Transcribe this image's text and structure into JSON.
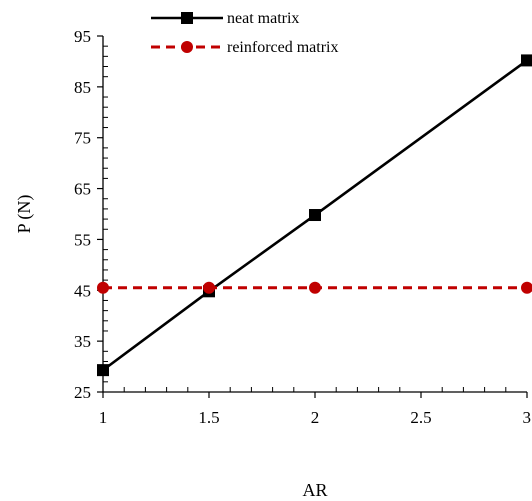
{
  "chart_data": {
    "type": "line",
    "xlabel": "AR",
    "ylabel": "P (N)",
    "xlim": [
      1,
      3
    ],
    "ylim": [
      25,
      95
    ],
    "xticks": [
      1,
      1.5,
      2,
      2.5,
      3
    ],
    "xtick_labels": [
      "1",
      "1.5",
      "2",
      "2.5",
      "3"
    ],
    "yticks": [
      25,
      35,
      45,
      55,
      65,
      75,
      85,
      95
    ],
    "ytick_labels": [
      "25",
      "35",
      "45",
      "55",
      "65",
      "75",
      "85",
      "95"
    ],
    "grid": false,
    "legend_position": "top-left",
    "series": [
      {
        "name": "neat matrix",
        "color": "#000000",
        "line_style": "solid",
        "marker": "square",
        "x": [
          1,
          1.5,
          2,
          3
        ],
        "y": [
          29.3,
          44.8,
          59.8,
          90.2
        ]
      },
      {
        "name": "reinforced matrix",
        "color": "#c00000",
        "line_style": "dashed",
        "marker": "circle",
        "x": [
          1,
          1.5,
          2,
          3
        ],
        "y": [
          45.5,
          45.5,
          45.5,
          45.5
        ]
      }
    ]
  }
}
